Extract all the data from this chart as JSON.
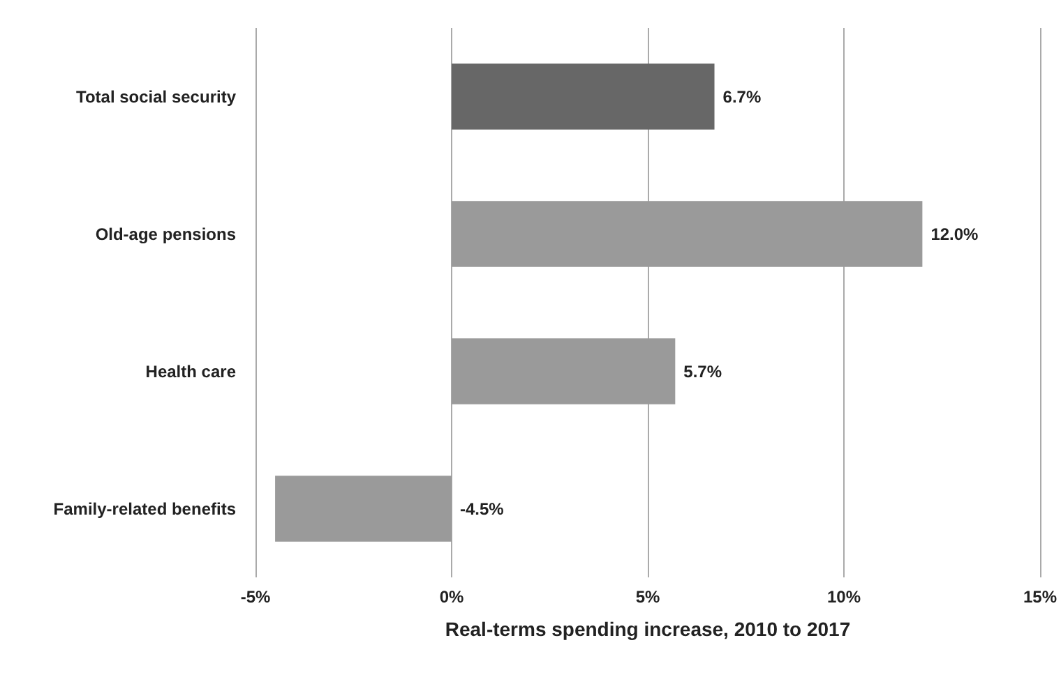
{
  "chart_data": {
    "type": "bar",
    "orientation": "horizontal",
    "xlabel": "Real-terms spending increase, 2010 to 2017",
    "categories": [
      "Total social security",
      "Old-age pensions",
      "Health care",
      "Family-related benefits"
    ],
    "values": [
      6.7,
      12.0,
      5.7,
      -4.5
    ],
    "colors": [
      "#676767",
      "#9a9a9a",
      "#9a9a9a",
      "#9a9a9a"
    ],
    "value_labels": [
      "6.7%",
      "12.0%",
      "5.7%",
      "-4.5%"
    ],
    "xlim": [
      -5,
      15
    ],
    "xticks": [
      {
        "value": -5,
        "label": "-5%"
      },
      {
        "value": 0,
        "label": "0%"
      },
      {
        "value": 5,
        "label": "5%"
      },
      {
        "value": 10,
        "label": "10%"
      },
      {
        "value": 15,
        "label": "15%"
      }
    ],
    "grid": "x"
  }
}
